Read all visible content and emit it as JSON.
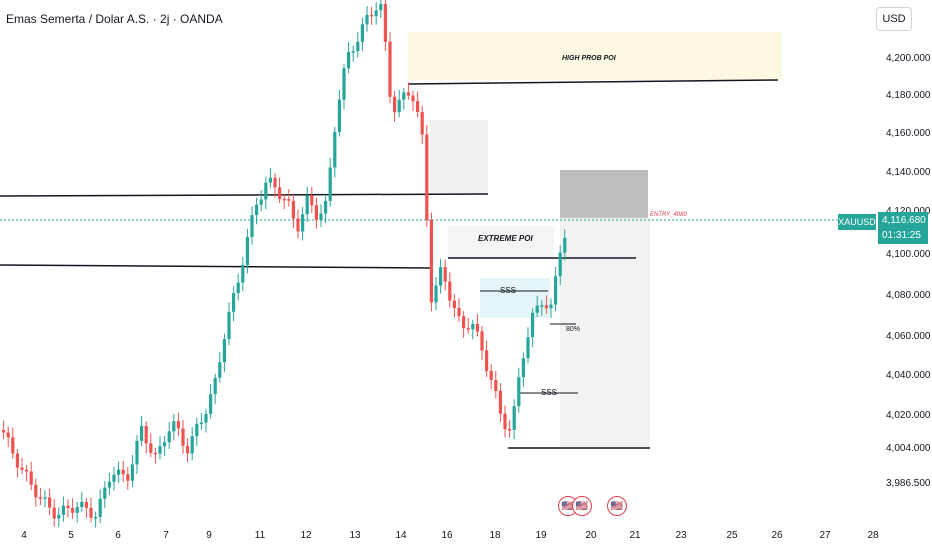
{
  "header": {
    "title": "Emas Semerta / Dolar A.S. · 2j · OANDA"
  },
  "currency_button": "USD",
  "symbol_tag": "XAUUSD",
  "last_price": {
    "price": "4,116.680",
    "countdown": "01:31:25"
  },
  "price_axis": [
    "4,200.000",
    "4,180.000",
    "4,160.000",
    "4,140.000",
    "4,120.000",
    "4,100.000",
    "4,080.000",
    "4,060.000",
    "4,040.000",
    "4,020.000",
    "4,004.000",
    "3,986.500"
  ],
  "time_axis": [
    "4",
    "5",
    "6",
    "7",
    "9",
    "11",
    "12",
    "13",
    "14",
    "16",
    "18",
    "19",
    "20",
    "21",
    "23",
    "25",
    "26",
    "27",
    "28"
  ],
  "annotations": {
    "high_prob_poi": "HIGH PROB POI",
    "extreme_poi": "EXTREME POI",
    "sss_1": "SSS",
    "sss_2": "SSS",
    "pct_80": "80%",
    "entry": "ENTRY_4080"
  },
  "colors": {
    "up": "#26a69a",
    "down": "#ef5350",
    "accent": "#26a69a",
    "entry": "#e04050"
  },
  "event_icons": [
    "us-flag-icon",
    "us-flag-icon",
    "us-flag-icon"
  ]
}
